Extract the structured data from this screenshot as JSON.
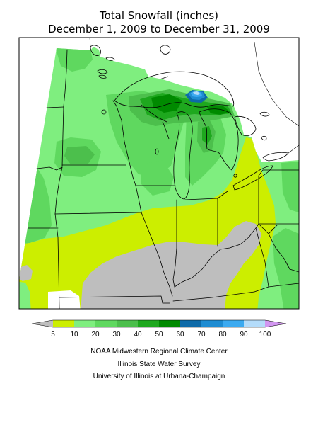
{
  "title": {
    "line1": "Total Snowfall (inches)",
    "line2": "December 1, 2009 to December 31, 2009"
  },
  "legend": {
    "labels": [
      "5",
      "10",
      "20",
      "30",
      "40",
      "50",
      "60",
      "70",
      "80",
      "90",
      "100"
    ],
    "under_color": "#bebebe",
    "bin_colors": [
      "#ccee00",
      "#7fee7f",
      "#5fd85f",
      "#4cbf4c",
      "#1ea81e",
      "#008a00",
      "#0d6aa8",
      "#1e8cd2",
      "#3caaf0",
      "#b4dcfa"
    ],
    "over_color": "#d296f0"
  },
  "credits": {
    "line1": "NOAA Midwestern Regional Climate Center",
    "line2": "Illinois State Water Survey",
    "line3": "University of Illinois at Urbana-Champaign"
  }
}
